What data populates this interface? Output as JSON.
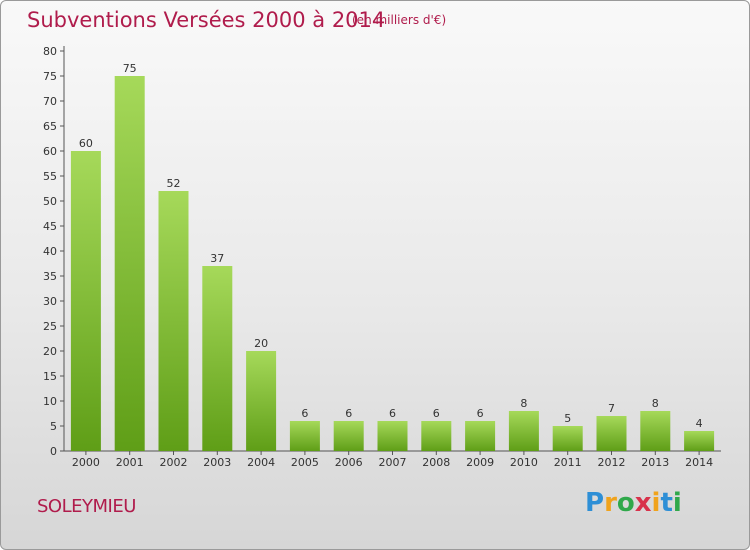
{
  "title": "Subventions Versées 2000 à 2014",
  "subtitle": "(en milliers d'€)",
  "commune": "SOLEYMIEU",
  "logo": {
    "text": "Proxiti",
    "letters": [
      "P",
      "r",
      "o",
      "x",
      "i",
      "t",
      "i"
    ]
  },
  "colors": {
    "bar_top": "#a6d95a",
    "bar_bottom": "#5f9e17",
    "title": "#b01c4c"
  },
  "chart_data": {
    "type": "bar",
    "categories": [
      "2000",
      "2001",
      "2002",
      "2003",
      "2004",
      "2005",
      "2006",
      "2007",
      "2008",
      "2009",
      "2010",
      "2011",
      "2012",
      "2013",
      "2014"
    ],
    "values": [
      60,
      75,
      52,
      37,
      20,
      6,
      6,
      6,
      6,
      6,
      8,
      5,
      7,
      8,
      4
    ],
    "ylim": [
      0,
      80
    ],
    "yticks": [
      0,
      5,
      10,
      15,
      20,
      25,
      30,
      35,
      40,
      45,
      50,
      55,
      60,
      65,
      70,
      75,
      80
    ],
    "grid": false,
    "xlabel": "",
    "ylabel": ""
  }
}
